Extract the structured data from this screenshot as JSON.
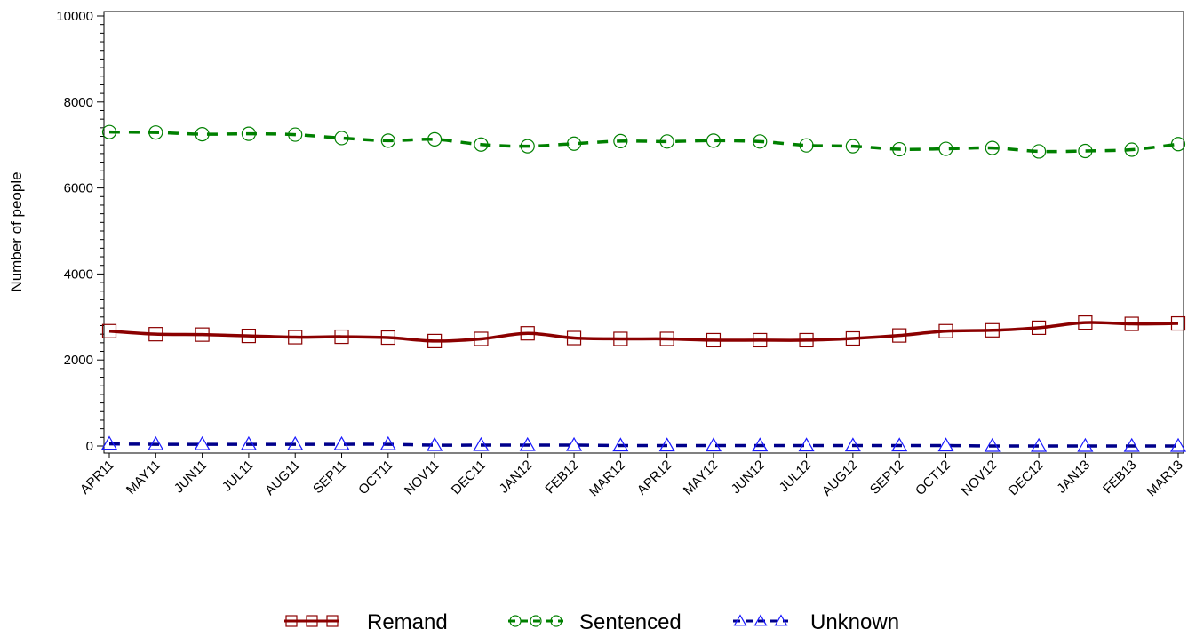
{
  "chart_data": {
    "type": "line",
    "ylabel": "Number of people",
    "xlabel": "",
    "ylim": [
      0,
      10000
    ],
    "yticks": [
      0,
      2000,
      4000,
      6000,
      8000,
      10000
    ],
    "y_minor_step": 200,
    "grid": false,
    "legend_position": "bottom-center",
    "categories": [
      "APR11",
      "MAY11",
      "JUN11",
      "JUL11",
      "AUG11",
      "SEP11",
      "OCT11",
      "NOV11",
      "DEC11",
      "JAN12",
      "FEB12",
      "MAR12",
      "APR12",
      "MAY12",
      "JUN12",
      "JUL12",
      "AUG12",
      "SEP12",
      "OCT12",
      "NOV12",
      "DEC12",
      "JAN13",
      "FEB13",
      "MAR13"
    ],
    "series": [
      {
        "name": "Remand",
        "color": "#8b0000",
        "marker": "square",
        "line_style": "solid",
        "values": [
          2670,
          2600,
          2590,
          2560,
          2530,
          2540,
          2520,
          2440,
          2490,
          2620,
          2510,
          2490,
          2490,
          2460,
          2460,
          2460,
          2500,
          2570,
          2670,
          2690,
          2750,
          2870,
          2840,
          2850
        ]
      },
      {
        "name": "Sentenced",
        "color": "#008000",
        "marker": "circle",
        "line_style": "dashed",
        "values": [
          7300,
          7290,
          7250,
          7260,
          7240,
          7160,
          7100,
          7130,
          7010,
          6970,
          7030,
          7090,
          7080,
          7100,
          7080,
          6990,
          6970,
          6900,
          6910,
          6930,
          6850,
          6860,
          6890,
          7020
        ]
      },
      {
        "name": "Unknown",
        "color": "#00008b",
        "marker_color": "#1a1aff",
        "marker": "triangle",
        "line_style": "dashed",
        "values": [
          50,
          40,
          40,
          40,
          40,
          40,
          40,
          20,
          20,
          20,
          20,
          10,
          10,
          10,
          10,
          10,
          10,
          10,
          10,
          0,
          0,
          0,
          0,
          0
        ]
      }
    ]
  }
}
